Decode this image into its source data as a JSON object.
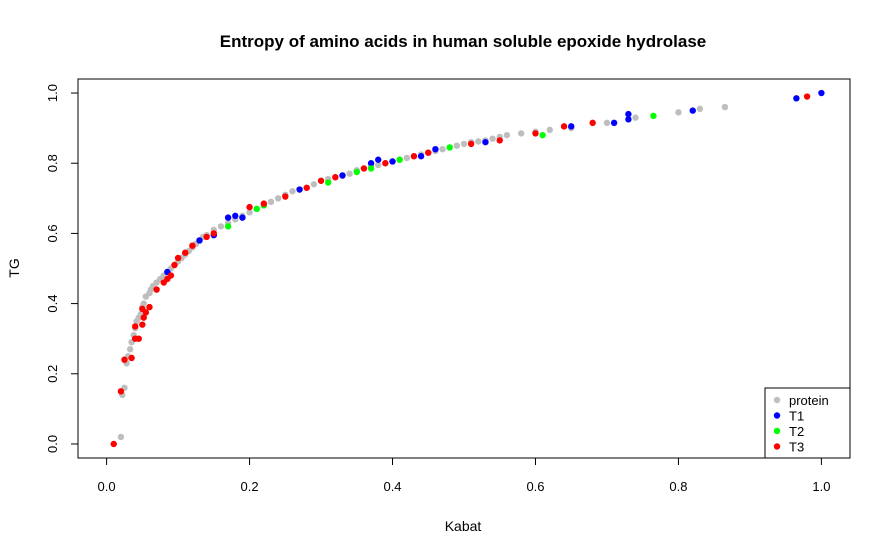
{
  "chart_data": {
    "type": "scatter",
    "title": "Entropy of amino acids in human soluble epoxide hydrolase",
    "xlabel": "Kabat",
    "ylabel": "TG",
    "xlim": [
      -0.04,
      1.04
    ],
    "ylim": [
      -0.04,
      1.04
    ],
    "x_ticks": [
      "0.0",
      "0.2",
      "0.4",
      "0.6",
      "0.8",
      "1.0"
    ],
    "y_ticks": [
      "0.0",
      "0.2",
      "0.4",
      "0.6",
      "0.8",
      "1.0"
    ],
    "grid": false,
    "legend_position": "bottom-right",
    "series": [
      {
        "name": "protein",
        "color": "#bebebe",
        "points": [
          [
            0.02,
            0.02
          ],
          [
            0.022,
            0.14
          ],
          [
            0.025,
            0.16
          ],
          [
            0.028,
            0.23
          ],
          [
            0.03,
            0.25
          ],
          [
            0.033,
            0.27
          ],
          [
            0.035,
            0.29
          ],
          [
            0.038,
            0.31
          ],
          [
            0.04,
            0.33
          ],
          [
            0.042,
            0.35
          ],
          [
            0.045,
            0.36
          ],
          [
            0.048,
            0.37
          ],
          [
            0.05,
            0.39
          ],
          [
            0.052,
            0.4
          ],
          [
            0.055,
            0.42
          ],
          [
            0.06,
            0.43
          ],
          [
            0.062,
            0.44
          ],
          [
            0.065,
            0.45
          ],
          [
            0.07,
            0.46
          ],
          [
            0.075,
            0.47
          ],
          [
            0.08,
            0.48
          ],
          [
            0.085,
            0.49
          ],
          [
            0.09,
            0.5
          ],
          [
            0.095,
            0.51
          ],
          [
            0.1,
            0.52
          ],
          [
            0.105,
            0.53
          ],
          [
            0.11,
            0.54
          ],
          [
            0.115,
            0.55
          ],
          [
            0.12,
            0.56
          ],
          [
            0.125,
            0.57
          ],
          [
            0.13,
            0.58
          ],
          [
            0.135,
            0.59
          ],
          [
            0.14,
            0.595
          ],
          [
            0.15,
            0.61
          ],
          [
            0.16,
            0.62
          ],
          [
            0.17,
            0.63
          ],
          [
            0.18,
            0.64
          ],
          [
            0.19,
            0.65
          ],
          [
            0.2,
            0.66
          ],
          [
            0.21,
            0.67
          ],
          [
            0.22,
            0.68
          ],
          [
            0.23,
            0.69
          ],
          [
            0.24,
            0.7
          ],
          [
            0.25,
            0.71
          ],
          [
            0.26,
            0.72
          ],
          [
            0.27,
            0.725
          ],
          [
            0.28,
            0.73
          ],
          [
            0.29,
            0.74
          ],
          [
            0.3,
            0.75
          ],
          [
            0.31,
            0.755
          ],
          [
            0.32,
            0.76
          ],
          [
            0.33,
            0.765
          ],
          [
            0.34,
            0.77
          ],
          [
            0.35,
            0.78
          ],
          [
            0.36,
            0.785
          ],
          [
            0.37,
            0.79
          ],
          [
            0.38,
            0.795
          ],
          [
            0.39,
            0.8
          ],
          [
            0.4,
            0.805
          ],
          [
            0.41,
            0.81
          ],
          [
            0.42,
            0.815
          ],
          [
            0.43,
            0.82
          ],
          [
            0.44,
            0.825
          ],
          [
            0.45,
            0.83
          ],
          [
            0.46,
            0.835
          ],
          [
            0.47,
            0.84
          ],
          [
            0.48,
            0.845
          ],
          [
            0.49,
            0.85
          ],
          [
            0.5,
            0.855
          ],
          [
            0.51,
            0.86
          ],
          [
            0.52,
            0.862
          ],
          [
            0.53,
            0.865
          ],
          [
            0.54,
            0.87
          ],
          [
            0.55,
            0.875
          ],
          [
            0.56,
            0.88
          ],
          [
            0.58,
            0.885
          ],
          [
            0.6,
            0.89
          ],
          [
            0.62,
            0.895
          ],
          [
            0.65,
            0.9
          ],
          [
            0.7,
            0.915
          ],
          [
            0.74,
            0.93
          ],
          [
            0.8,
            0.945
          ],
          [
            0.83,
            0.955
          ],
          [
            0.865,
            0.96
          ]
        ]
      },
      {
        "name": "T1",
        "color": "#0000ff",
        "points": [
          [
            0.085,
            0.49
          ],
          [
            0.13,
            0.58
          ],
          [
            0.15,
            0.595
          ],
          [
            0.17,
            0.645
          ],
          [
            0.18,
            0.65
          ],
          [
            0.19,
            0.645
          ],
          [
            0.27,
            0.725
          ],
          [
            0.33,
            0.765
          ],
          [
            0.37,
            0.8
          ],
          [
            0.38,
            0.81
          ],
          [
            0.4,
            0.805
          ],
          [
            0.44,
            0.82
          ],
          [
            0.46,
            0.84
          ],
          [
            0.53,
            0.86
          ],
          [
            0.65,
            0.905
          ],
          [
            0.71,
            0.915
          ],
          [
            0.73,
            0.925
          ],
          [
            0.73,
            0.94
          ],
          [
            0.82,
            0.95
          ],
          [
            0.965,
            0.985
          ],
          [
            1.0,
            1.0
          ]
        ]
      },
      {
        "name": "T2",
        "color": "#00ff00",
        "points": [
          [
            0.17,
            0.62
          ],
          [
            0.21,
            0.67
          ],
          [
            0.22,
            0.68
          ],
          [
            0.31,
            0.745
          ],
          [
            0.35,
            0.775
          ],
          [
            0.37,
            0.785
          ],
          [
            0.41,
            0.81
          ],
          [
            0.48,
            0.845
          ],
          [
            0.61,
            0.88
          ],
          [
            0.765,
            0.935
          ]
        ]
      },
      {
        "name": "T3",
        "color": "#ff0000",
        "points": [
          [
            0.01,
            0.0
          ],
          [
            0.02,
            0.15
          ],
          [
            0.025,
            0.24
          ],
          [
            0.035,
            0.245
          ],
          [
            0.04,
            0.3
          ],
          [
            0.045,
            0.3
          ],
          [
            0.04,
            0.335
          ],
          [
            0.05,
            0.34
          ],
          [
            0.052,
            0.36
          ],
          [
            0.055,
            0.375
          ],
          [
            0.05,
            0.385
          ],
          [
            0.06,
            0.39
          ],
          [
            0.07,
            0.44
          ],
          [
            0.08,
            0.46
          ],
          [
            0.085,
            0.47
          ],
          [
            0.09,
            0.48
          ],
          [
            0.095,
            0.51
          ],
          [
            0.1,
            0.53
          ],
          [
            0.11,
            0.545
          ],
          [
            0.12,
            0.565
          ],
          [
            0.14,
            0.59
          ],
          [
            0.15,
            0.6
          ],
          [
            0.2,
            0.675
          ],
          [
            0.22,
            0.685
          ],
          [
            0.25,
            0.705
          ],
          [
            0.28,
            0.73
          ],
          [
            0.3,
            0.75
          ],
          [
            0.32,
            0.76
          ],
          [
            0.36,
            0.785
          ],
          [
            0.39,
            0.8
          ],
          [
            0.43,
            0.82
          ],
          [
            0.45,
            0.83
          ],
          [
            0.51,
            0.855
          ],
          [
            0.55,
            0.865
          ],
          [
            0.6,
            0.885
          ],
          [
            0.64,
            0.905
          ],
          [
            0.68,
            0.915
          ],
          [
            0.98,
            0.99
          ]
        ]
      }
    ]
  }
}
